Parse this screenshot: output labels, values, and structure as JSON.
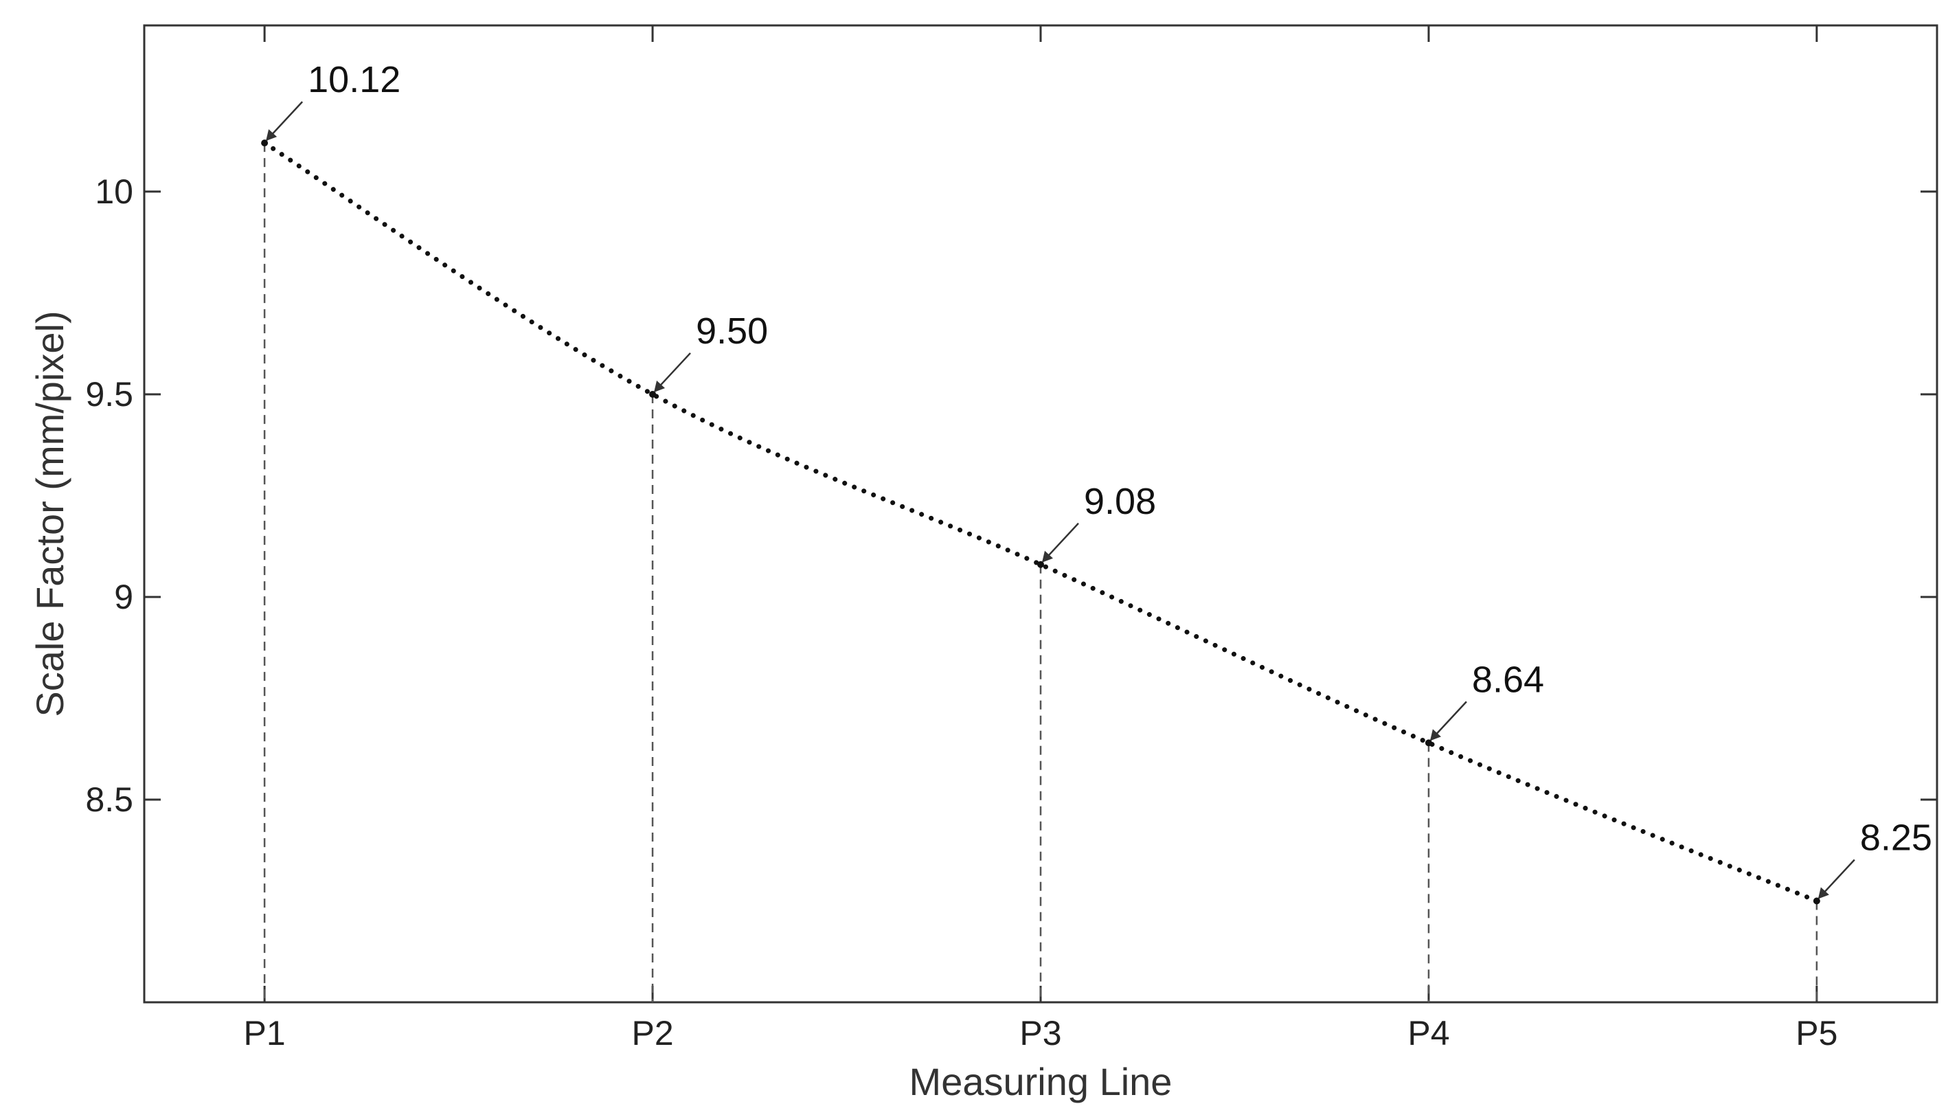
{
  "chart_data": {
    "type": "line",
    "title": "",
    "xlabel": "Measuring Line",
    "ylabel": "Scale Factor (mm/pixel)",
    "categories": [
      "P1",
      "P2",
      "P3",
      "P4",
      "P5"
    ],
    "series": [
      {
        "values": [
          10.12,
          9.5,
          9.08,
          8.64,
          8.25
        ],
        "data_labels": [
          "10.12",
          "9.50",
          "9.08",
          "8.64",
          "8.25"
        ]
      }
    ],
    "yticks": [
      "8.5",
      "9",
      "9.5",
      "10"
    ],
    "ylim": [
      8.0,
      10.41
    ],
    "xlim": [
      0.69,
      5.31
    ],
    "grid": false,
    "line_style": "dotted",
    "drop_lines": "dashed",
    "colors": {
      "line": "#111111",
      "axis": "#333333",
      "drop_line": "#555555",
      "background": "#ffffff"
    }
  }
}
